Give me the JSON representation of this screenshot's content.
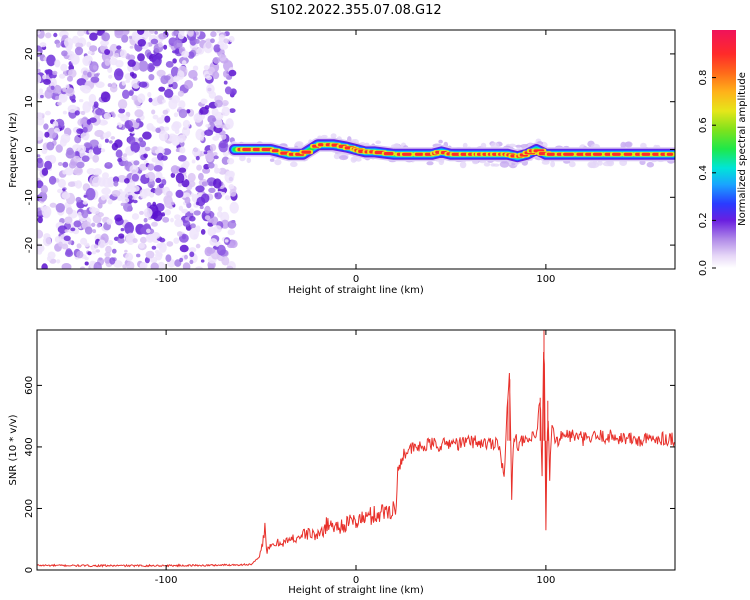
{
  "title": "S102.2022.355.07.08.G12",
  "chart_data": [
    {
      "type": "heatmap",
      "xlabel": "Height of straight line (km)",
      "ylabel": "Frequency (Hz)",
      "xlim": [
        -168,
        168
      ],
      "ylim": [
        -25,
        25
      ],
      "xticks": [
        -100,
        0,
        100
      ],
      "yticks": [
        -20,
        -10,
        0,
        10,
        20
      ],
      "colorbar": {
        "label": "Normalized spectral amplitude",
        "range": [
          0,
          1
        ],
        "ticks": [
          0.0,
          0.2,
          0.4,
          0.6,
          0.8
        ]
      },
      "noise_region_x": [
        -168,
        -64
      ],
      "signal_region_x": [
        -64,
        168
      ],
      "ridge": {
        "x": [
          -64,
          -55,
          -45,
          -35,
          -28,
          -20,
          -12,
          -5,
          0,
          5,
          10,
          20,
          30,
          40,
          45,
          50,
          60,
          65,
          70,
          75,
          80,
          85,
          90,
          95,
          100,
          110,
          120,
          130,
          140,
          150,
          160,
          168
        ],
        "freq": [
          0,
          0,
          0,
          -1,
          -1,
          1,
          1,
          0.5,
          0,
          -0.5,
          -0.5,
          -1,
          -1,
          -1,
          -0.5,
          -1,
          -1,
          -1,
          -1,
          -1,
          -1,
          -1.5,
          -1,
          0,
          -1,
          -1,
          -1,
          -1,
          -1,
          -1,
          -1,
          -1
        ]
      }
    },
    {
      "type": "line",
      "xlabel": "Height of straight line (km)",
      "ylabel": "SNR (10 * v/v)",
      "xlim": [
        -168,
        168
      ],
      "ylim": [
        0,
        780
      ],
      "xticks": [
        -100,
        0,
        100
      ],
      "yticks": [
        0,
        200,
        400,
        600
      ],
      "series": [
        {
          "color": "#e8312b",
          "x": [
            -168,
            -140,
            -110,
            -80,
            -55,
            -51,
            -49,
            -48,
            -47,
            -44,
            -40,
            -35,
            -30,
            -25,
            -20,
            -15,
            -10,
            -5,
            0,
            5,
            10,
            15,
            19,
            20,
            21,
            22,
            25,
            30,
            35,
            40,
            45,
            50,
            55,
            60,
            65,
            70,
            75,
            78,
            80,
            81,
            82,
            83,
            85,
            90,
            95,
            97,
            98,
            99,
            100,
            101,
            102,
            103,
            105,
            110,
            115,
            120,
            130,
            140,
            150,
            160,
            168
          ],
          "y": [
            15,
            14,
            14,
            15,
            18,
            40,
            100,
            140,
            60,
            80,
            90,
            95,
            110,
            120,
            110,
            150,
            140,
            150,
            160,
            170,
            180,
            190,
            200,
            205,
            180,
            320,
            380,
            395,
            400,
            410,
            405,
            415,
            410,
            420,
            415,
            410,
            420,
            300,
            560,
            620,
            240,
            450,
            410,
            420,
            430,
            560,
            300,
            780,
            130,
            550,
            300,
            460,
            420,
            440,
            435,
            425,
            435,
            430,
            420,
            430,
            425
          ]
        }
      ]
    }
  ]
}
